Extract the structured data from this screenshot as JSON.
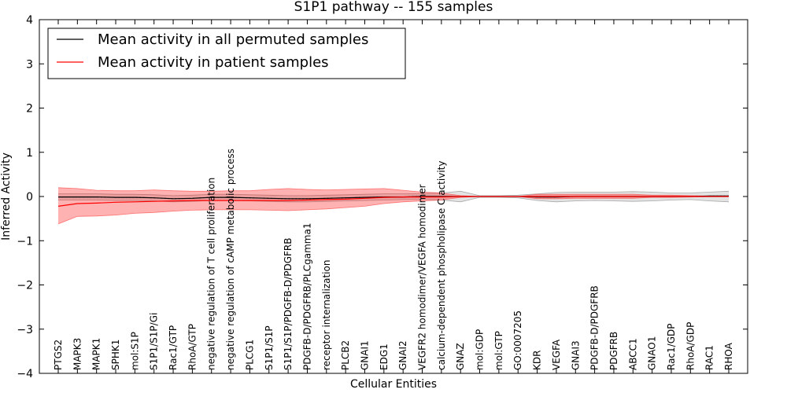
{
  "chart_data": {
    "type": "line",
    "title": "S1P1 pathway -- 155 samples",
    "xlabel": "Cellular Entities",
    "ylabel": "Inferred Activity",
    "ylim": [
      -4,
      4
    ],
    "yticks": [
      4,
      3,
      2,
      1,
      0,
      -1,
      -2,
      -3,
      -4
    ],
    "ytick_labels": [
      "4",
      "3",
      "2",
      "1",
      "0",
      "−1",
      "−2",
      "−3",
      "−4"
    ],
    "grid": false,
    "legend_position": "top-left",
    "categories": [
      "PTGS2",
      "MAPK3",
      "MAPK1",
      "SPHK1",
      "mol:S1P",
      "S1P1/S1P/Gi",
      "Rac1/GTP",
      "RhoA/GTP",
      "negative regulation of T cell proliferation",
      "negative regulation of cAMP metabolic process",
      "PLCG1",
      "S1P1/S1P",
      "S1P1/S1P/PDGFB-D/PDGFRB",
      "PDGFB-D/PDGFRB/PLCgamma1",
      "receptor internalization",
      "PLCB2",
      "GNAI1",
      "EDG1",
      "GNAI2",
      "VEGFR2 homodimer/VEGFA homodimer",
      "calcium-dependent phospholipase C activity",
      "GNAZ",
      "mol:GDP",
      "mol:GTP",
      "GO:0007205",
      "KDR",
      "VEGFA",
      "GNAI3",
      "PDGFB-D/PDGFRB",
      "PDGFRB",
      "ABCC1",
      "GNAO1",
      "Rac1/GDP",
      "RhoA/GDP",
      "RAC1",
      "RHOA"
    ],
    "series": [
      {
        "name": "Mean activity in all permuted samples",
        "color": "#000000",
        "values": [
          -0.01,
          -0.01,
          -0.01,
          -0.02,
          -0.02,
          -0.03,
          -0.05,
          -0.04,
          -0.02,
          -0.02,
          -0.03,
          -0.04,
          -0.05,
          -0.05,
          -0.04,
          -0.03,
          -0.02,
          -0.01,
          -0.01,
          0,
          0,
          0,
          0,
          0,
          0,
          -0.01,
          -0.01,
          0,
          0,
          0,
          0,
          0,
          0,
          0,
          0.01,
          0.01
        ],
        "lower": [
          -0.08,
          -0.08,
          -0.08,
          -0.09,
          -0.09,
          -0.1,
          -0.12,
          -0.11,
          -0.09,
          -0.09,
          -0.1,
          -0.11,
          -0.12,
          -0.12,
          -0.11,
          -0.1,
          -0.09,
          -0.08,
          -0.07,
          -0.07,
          -0.08,
          -0.12,
          -0.02,
          -0.02,
          -0.03,
          -0.09,
          -0.12,
          -0.1,
          -0.09,
          -0.1,
          -0.11,
          -0.1,
          -0.08,
          -0.07,
          -0.1,
          -0.12
        ],
        "upper": [
          0.06,
          0.06,
          0.06,
          0.05,
          0.05,
          0.04,
          0.02,
          0.03,
          0.05,
          0.05,
          0.04,
          0.03,
          0.02,
          0.02,
          0.03,
          0.04,
          0.05,
          0.06,
          0.06,
          0.07,
          0.08,
          0.12,
          0.02,
          0.02,
          0.03,
          0.06,
          0.09,
          0.1,
          0.1,
          0.1,
          0.11,
          0.1,
          0.08,
          0.08,
          0.1,
          0.12
        ]
      },
      {
        "name": "Mean activity in patient samples",
        "color": "#ff0000",
        "values": [
          -0.22,
          -0.16,
          -0.15,
          -0.13,
          -0.12,
          -0.11,
          -0.1,
          -0.09,
          -0.09,
          -0.09,
          -0.09,
          -0.09,
          -0.09,
          -0.08,
          -0.07,
          -0.06,
          -0.04,
          -0.02,
          -0.01,
          -0.01,
          -0.01,
          0,
          0,
          0,
          0,
          0,
          0,
          0,
          0,
          0,
          0,
          0,
          0,
          0,
          0,
          0
        ],
        "lower": [
          -0.62,
          -0.45,
          -0.44,
          -0.42,
          -0.38,
          -0.36,
          -0.33,
          -0.31,
          -0.3,
          -0.3,
          -0.3,
          -0.31,
          -0.32,
          -0.3,
          -0.28,
          -0.25,
          -0.22,
          -0.16,
          -0.12,
          -0.1,
          -0.08,
          -0.02,
          0,
          0,
          0,
          -0.05,
          -0.05,
          -0.04,
          -0.04,
          -0.04,
          -0.04,
          -0.02,
          -0.02,
          -0.01,
          0,
          0
        ],
        "upper": [
          0.2,
          0.18,
          0.14,
          0.13,
          0.13,
          0.15,
          0.13,
          0.12,
          0.12,
          0.13,
          0.13,
          0.16,
          0.18,
          0.16,
          0.15,
          0.16,
          0.17,
          0.18,
          0.14,
          0.1,
          0.08,
          0.02,
          0,
          0,
          0,
          0.05,
          0.05,
          0.05,
          0.05,
          0.05,
          0.05,
          0.03,
          0.03,
          0.02,
          0.01,
          0.01
        ]
      }
    ]
  }
}
